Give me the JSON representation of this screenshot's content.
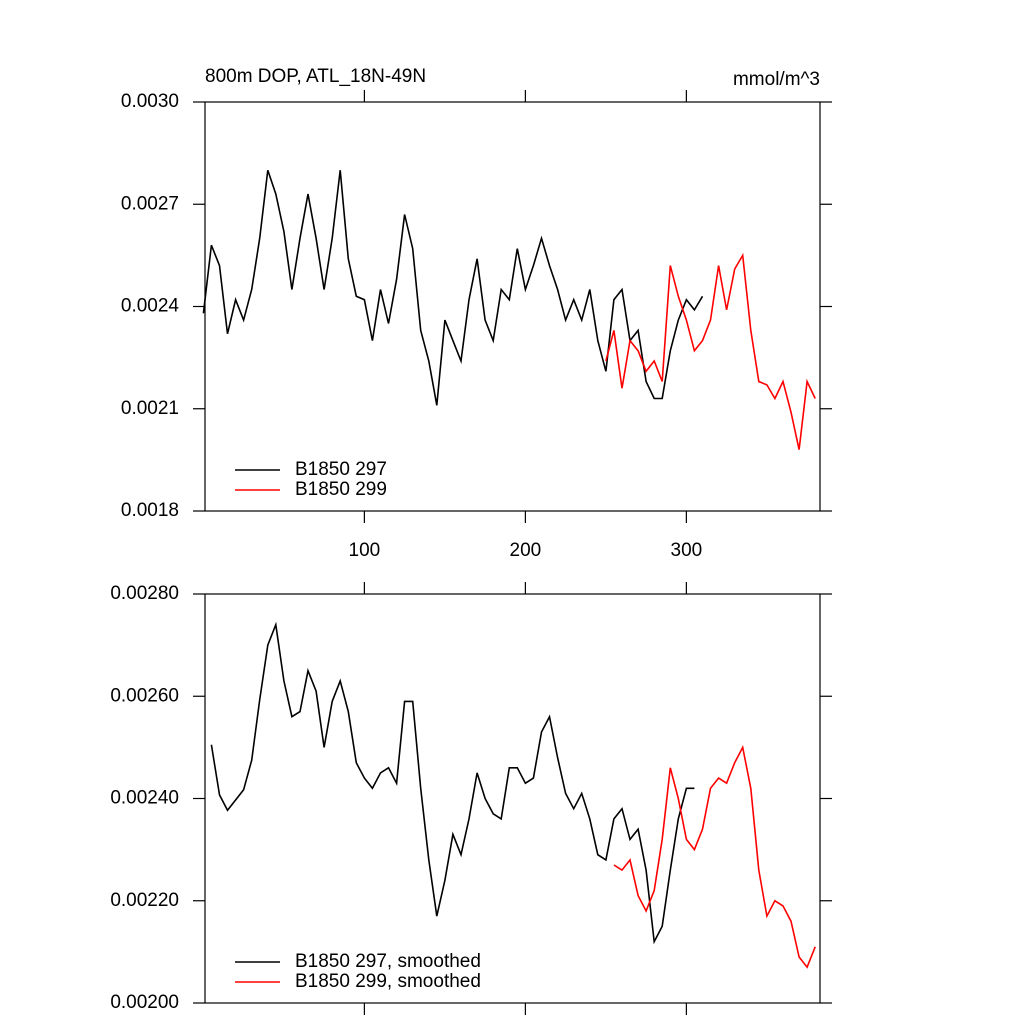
{
  "chart_data": [
    {
      "type": "line",
      "title": "800m DOP, ATL_18N-49N",
      "units": "mmol/m^3",
      "xlim": [
        1,
        383
      ],
      "xticks": [
        100,
        200,
        300
      ],
      "ylim": [
        0.0018,
        0.003
      ],
      "yticks": [
        {
          "value": 0.0018,
          "label": "0.0018"
        },
        {
          "value": 0.0021,
          "label": "0.0021"
        },
        {
          "value": 0.0024,
          "label": "0.0024"
        },
        {
          "value": 0.0027,
          "label": "0.0027"
        },
        {
          "value": 0.003,
          "label": "0.0030"
        }
      ],
      "series": [
        {
          "name": "B1850 297",
          "color": "#000000",
          "x": [
            0,
            5,
            10,
            15,
            20,
            25,
            30,
            35,
            40,
            45,
            50,
            55,
            60,
            65,
            70,
            75,
            80,
            85,
            90,
            95,
            100,
            105,
            110,
            115,
            120,
            125,
            130,
            135,
            140,
            145,
            150,
            155,
            160,
            165,
            170,
            175,
            180,
            185,
            190,
            195,
            200,
            205,
            210,
            215,
            220,
            225,
            230,
            235,
            240,
            245,
            250,
            255,
            260,
            265,
            270,
            275,
            280,
            285,
            290,
            295,
            300,
            305,
            310
          ],
          "values": [
            0.00238,
            0.00258,
            0.00252,
            0.00232,
            0.00242,
            0.00236,
            0.00245,
            0.0026,
            0.0028,
            0.00273,
            0.00262,
            0.00245,
            0.0026,
            0.00273,
            0.0026,
            0.00245,
            0.0026,
            0.0028,
            0.00254,
            0.00243,
            0.00242,
            0.0023,
            0.00245,
            0.00235,
            0.00248,
            0.00267,
            0.00257,
            0.00233,
            0.00224,
            0.00211,
            0.00236,
            0.0023,
            0.00224,
            0.00242,
            0.00254,
            0.00236,
            0.0023,
            0.00245,
            0.00242,
            0.00257,
            0.00245,
            0.00252,
            0.0026,
            0.00252,
            0.00245,
            0.00236,
            0.00242,
            0.00236,
            0.00245,
            0.0023,
            0.00221,
            0.00242,
            0.00245,
            0.0023,
            0.00233,
            0.00218,
            0.00213,
            0.00213,
            0.00227,
            0.00236,
            0.00242,
            0.00239,
            0.00243
          ]
        },
        {
          "name": "B1850 299",
          "color": "#ff0000",
          "x": [
            250,
            255,
            260,
            265,
            270,
            275,
            280,
            285,
            290,
            295,
            300,
            305,
            310,
            315,
            320,
            325,
            330,
            335,
            340,
            345,
            350,
            355,
            360,
            365,
            370,
            375,
            380
          ],
          "values": [
            0.00224,
            0.00233,
            0.00216,
            0.0023,
            0.00227,
            0.00221,
            0.00224,
            0.00218,
            0.00252,
            0.00243,
            0.00236,
            0.00227,
            0.0023,
            0.00236,
            0.00252,
            0.00239,
            0.00251,
            0.00255,
            0.00233,
            0.00218,
            0.00217,
            0.00213,
            0.00218,
            0.00209,
            0.00198,
            0.00218,
            0.00213
          ]
        }
      ]
    },
    {
      "type": "line",
      "xlim": [
        1,
        383
      ],
      "xticks": [
        100,
        200,
        300
      ],
      "ylim": [
        0.002,
        0.0028
      ],
      "yticks": [
        {
          "value": 0.002,
          "label": "0.00200"
        },
        {
          "value": 0.0022,
          "label": "0.00220"
        },
        {
          "value": 0.0024,
          "label": "0.00240"
        },
        {
          "value": 0.0026,
          "label": "0.00260"
        },
        {
          "value": 0.0028,
          "label": "0.00280"
        }
      ],
      "series": [
        {
          "name": "B1850 297, smoothed",
          "color": "#000000",
          "x": [
            5,
            10,
            15,
            20,
            25,
            30,
            35,
            40,
            45,
            50,
            55,
            60,
            65,
            70,
            75,
            80,
            85,
            90,
            95,
            100,
            105,
            110,
            115,
            120,
            125,
            130,
            135,
            140,
            145,
            150,
            155,
            160,
            165,
            170,
            175,
            180,
            185,
            190,
            195,
            200,
            205,
            210,
            215,
            220,
            225,
            230,
            235,
            240,
            245,
            250,
            255,
            260,
            265,
            270,
            275,
            280,
            285,
            290,
            295,
            300,
            305
          ],
          "values": [
            0.002505,
            0.002407,
            0.002377,
            0.002397,
            0.002417,
            0.002475,
            0.002593,
            0.0027,
            0.00274,
            0.00263,
            0.00256,
            0.00257,
            0.00265,
            0.00261,
            0.0025,
            0.00259,
            0.00263,
            0.00257,
            0.00247,
            0.00244,
            0.00242,
            0.00245,
            0.00246,
            0.00243,
            0.00259,
            0.00259,
            0.00242,
            0.00228,
            0.00217,
            0.00224,
            0.00233,
            0.00229,
            0.00236,
            0.00245,
            0.0024,
            0.00237,
            0.00236,
            0.00246,
            0.00246,
            0.00243,
            0.00244,
            0.00253,
            0.00256,
            0.00248,
            0.00241,
            0.00238,
            0.00241,
            0.00236,
            0.00229,
            0.00228,
            0.00236,
            0.00238,
            0.00232,
            0.00234,
            0.00226,
            0.00212,
            0.00215,
            0.00226,
            0.00236,
            0.00242,
            0.00242
          ]
        },
        {
          "name": "B1850 299, smoothed",
          "color": "#ff0000",
          "x": [
            255,
            260,
            265,
            270,
            275,
            280,
            285,
            290,
            295,
            300,
            305,
            310,
            315,
            320,
            325,
            330,
            335,
            340,
            345,
            350,
            355,
            360,
            365,
            370,
            375,
            380
          ],
          "values": [
            0.00227,
            0.00226,
            0.00228,
            0.00221,
            0.00218,
            0.00222,
            0.00232,
            0.00246,
            0.0024,
            0.00232,
            0.0023,
            0.00234,
            0.00242,
            0.00244,
            0.00243,
            0.00247,
            0.0025,
            0.00242,
            0.00226,
            0.00217,
            0.0022,
            0.00219,
            0.00216,
            0.00209,
            0.00207,
            0.00211
          ]
        }
      ]
    }
  ]
}
